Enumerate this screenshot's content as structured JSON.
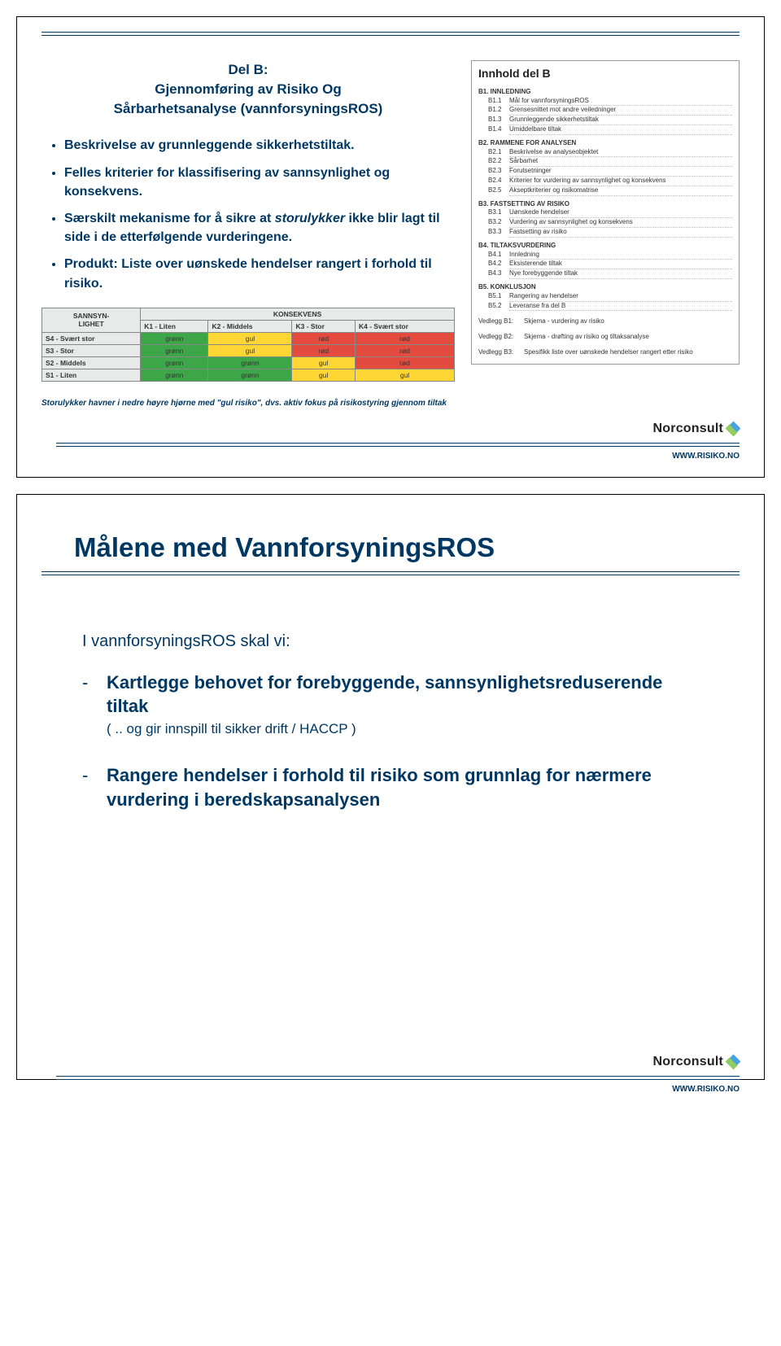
{
  "colors": {
    "brand_text": "#003863",
    "rule": "#003863",
    "matrix_gronn": "#3da648",
    "matrix_gul": "#ffd633",
    "matrix_rod": "#e34b3e",
    "matrix_bg": "#eef0f0",
    "matrix_border": "#888888"
  },
  "logo": {
    "text": "Norconsult",
    "url": "WWW.RISIKO.NO"
  },
  "slide1": {
    "title_l1": "Del B:",
    "title_l2": "Gjennomføring av Risiko Og",
    "title_l3": "Sårbarhetsanalyse (vannforsyningsROS)",
    "bullets": [
      {
        "text": "Beskrivelse av grunnleggende sikkerhetstiltak."
      },
      {
        "text": "Felles kriterier for klassifisering av sannsynlighet og konsekvens."
      },
      {
        "pre": "Særskilt mekanisme for å sikre at ",
        "em": "storulykker",
        "post": " ikke blir lagt til side i de etterfølgende vurderingene."
      },
      {
        "text": "Produkt: Liste over uønskede hendelser rangert i forhold til risiko."
      }
    ],
    "matrix": {
      "row_header": "SANNSYN-LIGHET",
      "group_header": "KONSEKVENS",
      "col_headers": [
        "K1 - Liten",
        "K2 - Middels",
        "K3 - Stor",
        "K4 - Svært stor"
      ],
      "rows": [
        {
          "label": "S4 - Svært stor",
          "cells": [
            "grønn",
            "gul",
            "rød",
            "rød"
          ]
        },
        {
          "label": "S3 - Stor",
          "cells": [
            "grønn",
            "gul",
            "rød",
            "rød"
          ]
        },
        {
          "label": "S2 - Middels",
          "cells": [
            "grønn",
            "grønn",
            "gul",
            "rød"
          ]
        },
        {
          "label": "S1 - Liten",
          "cells": [
            "grønn",
            "grønn",
            "gul",
            "gul"
          ]
        }
      ],
      "palette": {
        "grønn": "#3da648",
        "gul": "#ffd633",
        "rød": "#e34b3e"
      }
    },
    "caption": "Storulykker havner i nedre høyre hjørne med \"gul risiko\", dvs. aktiv fokus på risikostyring gjennom tiltak",
    "toc": {
      "title": "Innhold del B",
      "sections": [
        {
          "num": "B1.",
          "label": "INNLEDNING",
          "subs": [
            {
              "num": "B1.1",
              "label": "Mål for vannforsyningsROS"
            },
            {
              "num": "B1.2",
              "label": "Grensesnittet mot andre veiledninger"
            },
            {
              "num": "B1.3",
              "label": "Grunnleggende sikkerhetstiltak"
            },
            {
              "num": "B1.4",
              "label": "Umiddelbare tiltak"
            }
          ]
        },
        {
          "num": "B2.",
          "label": "RAMMENE FOR ANALYSEN",
          "subs": [
            {
              "num": "B2.1",
              "label": "Beskrivelse av analyseobjektet"
            },
            {
              "num": "B2.2",
              "label": "Sårbarhet"
            },
            {
              "num": "B2.3",
              "label": "Forutsetninger"
            },
            {
              "num": "B2.4",
              "label": "Kriterier for vurdering av sannsynlighet og konsekvens"
            },
            {
              "num": "B2.5",
              "label": "Akseptkriterier og risikomatrise"
            }
          ]
        },
        {
          "num": "B3.",
          "label": "FASTSETTING AV RISIKO",
          "subs": [
            {
              "num": "B3.1",
              "label": "Uønskede hendelser"
            },
            {
              "num": "B3.2",
              "label": "Vurdering av sannsynlighet og konsekvens"
            },
            {
              "num": "B3.3",
              "label": "Fastsetting av risiko"
            }
          ]
        },
        {
          "num": "B4.",
          "label": "TILTAKSVURDERING",
          "subs": [
            {
              "num": "B4.1",
              "label": "Innledning"
            },
            {
              "num": "B4.2",
              "label": "Eksisterende tiltak"
            },
            {
              "num": "B4.3",
              "label": "Nye forebyggende tiltak"
            }
          ]
        },
        {
          "num": "B5.",
          "label": "KONKLUSJON",
          "subs": [
            {
              "num": "B5.1",
              "label": "Rangering av hendelser"
            },
            {
              "num": "B5.2",
              "label": "Leveranse fra del B"
            }
          ]
        }
      ],
      "vedlegg": [
        {
          "num": "Vedlegg B1:",
          "label": "Skjema - vurdering av risiko"
        },
        {
          "num": "Vedlegg B2:",
          "label": "Skjema - drøfting av risiko og tiltaksanalyse"
        },
        {
          "num": "Vedlegg B3:",
          "label": "Spesifikk liste over uønskede hendelser rangert etter risiko"
        }
      ]
    }
  },
  "slide2": {
    "title": "Målene med VannforsyningsROS",
    "intro": "I vannforsyningsROS skal vi:",
    "goals": [
      {
        "headline": "Kartlegge behovet for forebyggende, sannsynlighetsreduserende tiltak",
        "sub": "( .. og gir innspill til sikker drift / HACCP )"
      },
      {
        "headline": "Rangere hendelser i forhold til risiko som grunnlag for nærmere vurdering i beredskapsanalysen",
        "sub": ""
      }
    ]
  }
}
